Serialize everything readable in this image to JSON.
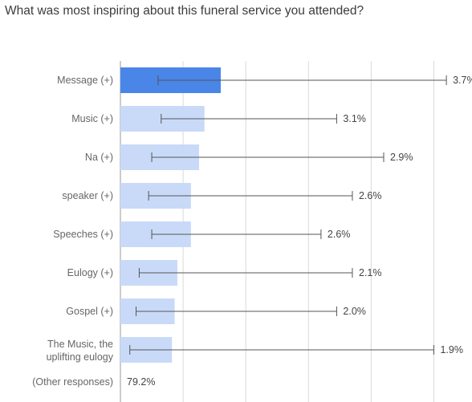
{
  "chart_data": {
    "type": "bar",
    "orientation": "horizontal",
    "title": "What was most inspiring about this funeral service you attended?",
    "categories": [
      "Message (+)",
      "Music (+)",
      "Na (+)",
      "speaker (+)",
      "Speeches (+)",
      "Eulogy (+)",
      "Gospel (+)",
      "The Music, the uplifting eulogy"
    ],
    "values": [
      3.7,
      3.1,
      2.9,
      2.6,
      2.6,
      2.1,
      2.0,
      1.9
    ],
    "value_labels": [
      "3.7%",
      "3.1%",
      "2.9%",
      "2.6%",
      "2.6%",
      "2.1%",
      "2.0%",
      "1.9%"
    ],
    "error_bars": [
      [
        1.2,
        10.4
      ],
      [
        1.3,
        6.9
      ],
      [
        1.0,
        8.4
      ],
      [
        0.9,
        7.4
      ],
      [
        1.0,
        6.4
      ],
      [
        0.6,
        7.4
      ],
      [
        0.5,
        6.9
      ],
      [
        0.3,
        10.0
      ]
    ],
    "highlighted_index": 0,
    "other_responses": {
      "label": "(Other responses)",
      "value_label": "79.2%"
    },
    "xlim": [
      0,
      10.5
    ],
    "grid": true,
    "colors": {
      "highlight": "#4a86e8",
      "bar": "#c9daf8",
      "grid": "#d9d9d9",
      "axis": "#999999",
      "error": "#555555"
    }
  }
}
